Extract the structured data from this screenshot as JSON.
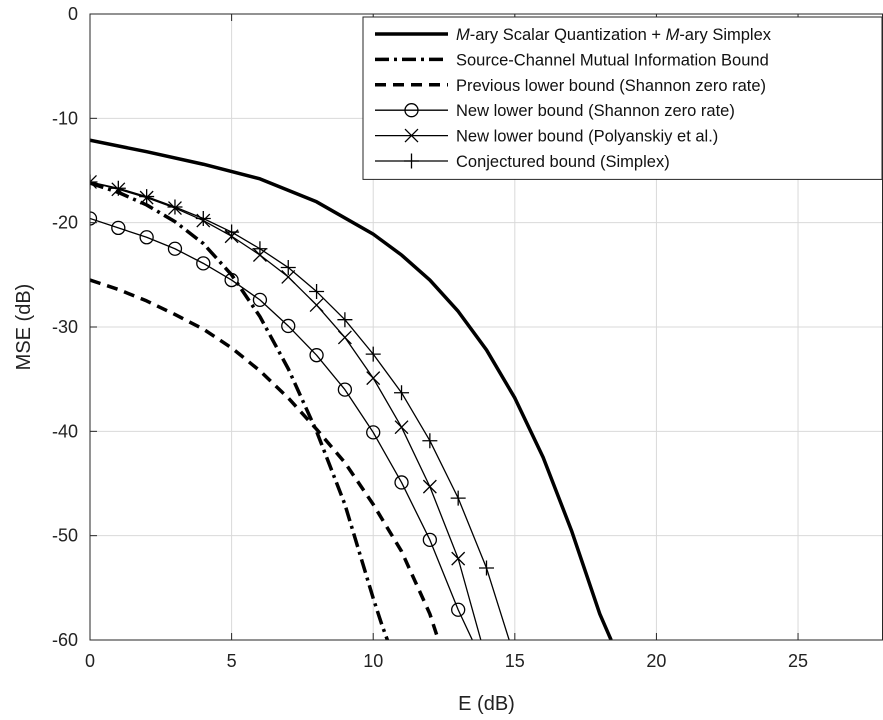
{
  "chart_data": {
    "type": "line",
    "title": "",
    "xlabel": "E (dB)",
    "ylabel": "MSE (dB)",
    "xlim": [
      0,
      28
    ],
    "ylim": [
      -60,
      0
    ],
    "xticks": [
      0,
      5,
      10,
      15,
      20,
      25
    ],
    "yticks": [
      0,
      -10,
      -20,
      -30,
      -40,
      -50,
      -60
    ],
    "xtick_labels": [
      "0",
      "5",
      "10",
      "15",
      "20",
      "25"
    ],
    "ytick_labels": [
      "0",
      "-10",
      "-20",
      "-30",
      "-40",
      "-50",
      "-60"
    ],
    "grid": true,
    "legend_position": "top-right",
    "series": [
      {
        "name": "M-ary Scalar Quantization + M-ary Simplex",
        "line_style": "solid-thick",
        "marker": "none",
        "x": [
          0,
          2,
          4,
          6,
          8,
          10,
          11,
          12,
          13,
          14,
          15,
          16,
          17,
          17.5,
          18,
          18.4
        ],
        "y": [
          -12.1,
          -13.2,
          -14.4,
          -15.8,
          -18.0,
          -21.1,
          -23.1,
          -25.5,
          -28.5,
          -32.2,
          -36.8,
          -42.5,
          -49.5,
          -53.5,
          -57.5,
          -60
        ]
      },
      {
        "name": "Source-Channel Mutual Information Bound",
        "line_style": "dash-dot-thick",
        "marker": "none",
        "x": [
          0,
          1,
          2,
          3,
          4,
          5,
          6,
          7,
          8,
          9,
          9.5,
          10,
          10.3,
          10.5
        ],
        "y": [
          -16.2,
          -17.1,
          -18.3,
          -19.9,
          -22.0,
          -25.0,
          -29.0,
          -34.0,
          -40.0,
          -47.0,
          -51.5,
          -56.0,
          -58.5,
          -60
        ]
      },
      {
        "name": "Previous lower bound (Shannon zero rate)",
        "line_style": "dashed-thick",
        "marker": "none",
        "x": [
          0,
          1,
          2,
          3,
          4,
          5,
          6,
          7,
          8,
          9,
          10,
          11,
          11.5,
          12,
          12.3
        ],
        "y": [
          -25.5,
          -26.4,
          -27.5,
          -28.8,
          -30.2,
          -32.0,
          -34.2,
          -36.8,
          -39.8,
          -43.0,
          -47.0,
          -51.5,
          -54.5,
          -57.5,
          -60
        ]
      },
      {
        "name": "New lower bound (Shannon zero rate)",
        "line_style": "solid",
        "marker": "circle",
        "x": [
          0,
          1,
          2,
          3,
          4,
          5,
          6,
          7,
          8,
          9,
          10,
          11,
          12,
          13,
          13.5
        ],
        "y": [
          -19.6,
          -20.5,
          -21.4,
          -22.5,
          -23.9,
          -25.5,
          -27.4,
          -29.9,
          -32.7,
          -36.0,
          -40.1,
          -44.9,
          -50.4,
          -57.1,
          -60
        ]
      },
      {
        "name": "New lower bound (Polyanskiy et al.)",
        "line_style": "solid",
        "marker": "x",
        "x": [
          0,
          1,
          2,
          3,
          4,
          5,
          6,
          7,
          8,
          9,
          10,
          11,
          12,
          13,
          13.8
        ],
        "y": [
          -16.1,
          -16.8,
          -17.6,
          -18.6,
          -19.8,
          -21.3,
          -23.1,
          -25.2,
          -27.9,
          -31.0,
          -34.9,
          -39.6,
          -45.3,
          -52.2,
          -60
        ]
      },
      {
        "name": "Conjectured bound (Simplex)",
        "line_style": "solid",
        "marker": "plus",
        "x": [
          0,
          1,
          2,
          3,
          4,
          5,
          6,
          7,
          8,
          9,
          10,
          11,
          12,
          13,
          14,
          14.8
        ],
        "y": [
          -16.1,
          -16.7,
          -17.5,
          -18.5,
          -19.6,
          -20.9,
          -22.5,
          -24.3,
          -26.6,
          -29.3,
          -32.6,
          -36.3,
          -40.9,
          -46.4,
          -53.1,
          -60
        ]
      }
    ]
  },
  "legend": {
    "entries": [
      {
        "parts": [
          {
            "t": "M",
            "italic": true
          },
          {
            "t": "-ary Scalar Quantization + ",
            "italic": false
          },
          {
            "t": "M",
            "italic": true
          },
          {
            "t": "-ary Simplex",
            "italic": false
          }
        ]
      },
      {
        "parts": [
          {
            "t": "Source-Channel Mutual Information Bound",
            "italic": false
          }
        ]
      },
      {
        "parts": [
          {
            "t": "Previous lower bound (Shannon zero rate)",
            "italic": false
          }
        ]
      },
      {
        "parts": [
          {
            "t": "New lower bound (Shannon zero rate)",
            "italic": false
          }
        ]
      },
      {
        "parts": [
          {
            "t": "New lower bound (Polyanskiy et al.)",
            "italic": false
          }
        ]
      },
      {
        "parts": [
          {
            "t": "Conjectured bound (Simplex)",
            "italic": false
          }
        ]
      }
    ]
  },
  "colors": {
    "line": "#000000",
    "grid": "#d9d9d9",
    "frame": "#262626",
    "background": "#ffffff"
  }
}
